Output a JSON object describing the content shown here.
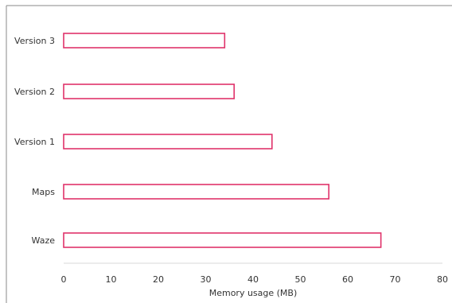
{
  "chart_data": {
    "type": "bar",
    "orientation": "horizontal",
    "categories": [
      "Version 3",
      "Version 2",
      "Version 1",
      "Maps",
      "Waze"
    ],
    "values": [
      34,
      36,
      44,
      56,
      67
    ],
    "xlabel": "Memory usage (MB)",
    "ylabel": "",
    "xlim": [
      0,
      80
    ],
    "xticks": [
      "0",
      "10",
      "20",
      "30",
      "40",
      "50",
      "60",
      "70",
      "80"
    ],
    "grid": false,
    "legend": "none",
    "colors": {
      "bar_stroke": "#e0336b",
      "bar_fill": "#ffffff",
      "frame": "#888888",
      "axis": "#d9d9d9",
      "text": "#333333"
    }
  }
}
